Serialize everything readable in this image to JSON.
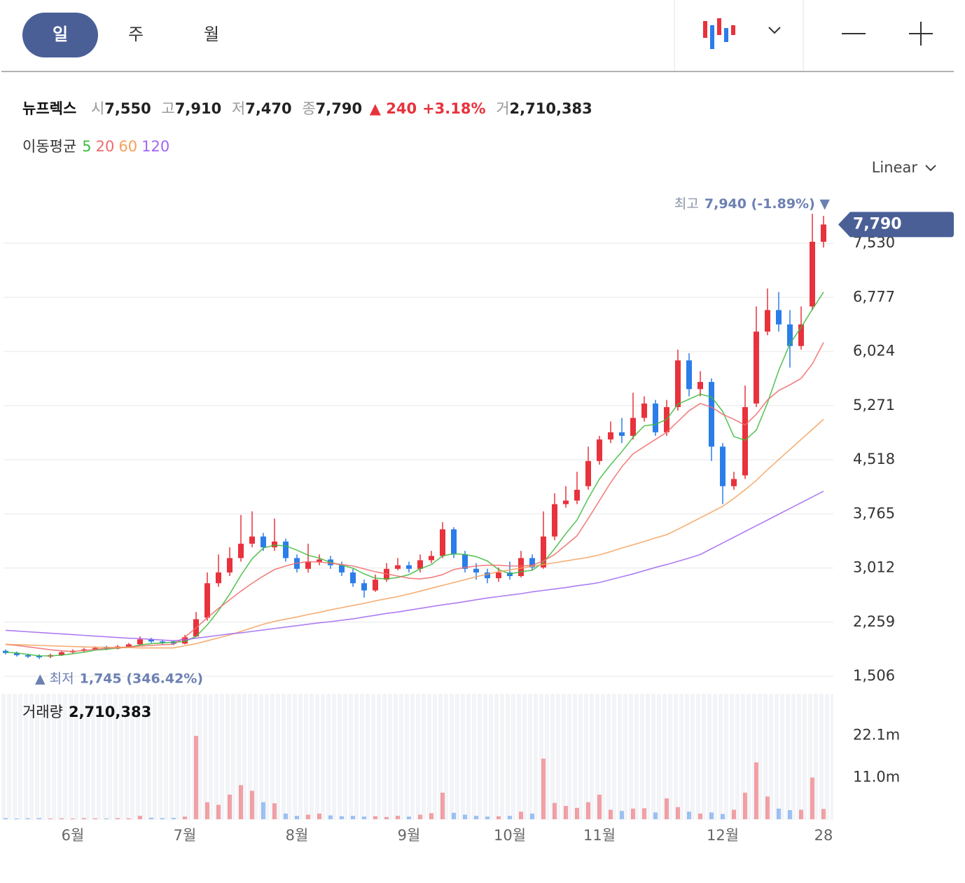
{
  "header": {
    "tabs": [
      "일",
      "주",
      "월"
    ],
    "scale": "Linear"
  },
  "quote": {
    "name": "뉴프렉스",
    "open_label": "시",
    "open": "7,550",
    "high_label": "고",
    "high": "7,910",
    "low_label": "저",
    "low": "7,470",
    "close_label": "종",
    "close": "7,790",
    "change": "▲ 240",
    "change_pct": "+3.18%",
    "volume_label": "거",
    "volume": "2,710,383"
  },
  "chart_data": {
    "type": "candlestick",
    "categories": [
      null,
      null,
      null,
      null,
      null,
      null,
      "6월",
      null,
      null,
      null,
      null,
      null,
      null,
      null,
      null,
      null,
      "7월",
      null,
      null,
      null,
      null,
      null,
      null,
      null,
      null,
      null,
      "8월",
      null,
      null,
      null,
      null,
      null,
      null,
      null,
      null,
      null,
      "9월",
      null,
      null,
      null,
      null,
      null,
      null,
      null,
      null,
      "10월",
      null,
      null,
      null,
      null,
      null,
      null,
      null,
      "11월",
      null,
      null,
      null,
      null,
      null,
      null,
      null,
      null,
      null,
      null,
      "12월",
      null,
      null,
      null,
      null,
      null,
      null,
      null,
      null,
      "28"
    ],
    "open": [
      1860,
      1830,
      1800,
      1790,
      1780,
      1800,
      1840,
      1860,
      1880,
      1910,
      1890,
      1920,
      1950,
      2020,
      1990,
      1990,
      1960,
      2060,
      2320,
      2800,
      2950,
      3150,
      3350,
      3450,
      3300,
      3380,
      3150,
      3000,
      3100,
      3130,
      3050,
      2950,
      2800,
      2700,
      2850,
      3000,
      3050,
      3000,
      3120,
      3180,
      3550,
      3200,
      3000,
      2950,
      2870,
      2950,
      2900,
      3150,
      3020,
      3450,
      3900,
      3950,
      4150,
      4500,
      4800,
      4900,
      4850,
      5100,
      5300,
      4900,
      5250,
      5900,
      5500,
      5600,
      4700,
      4150,
      4300,
      5300,
      6300,
      6600,
      6400,
      6100,
      6650,
      7550
    ],
    "high": [
      1880,
      1850,
      1820,
      1810,
      1820,
      1860,
      1880,
      1900,
      1920,
      1930,
      1940,
      1970,
      2060,
      2040,
      2010,
      2000,
      2080,
      2400,
      2950,
      3200,
      3300,
      3750,
      3800,
      3500,
      3700,
      3420,
      3200,
      3350,
      3200,
      3180,
      3100,
      3000,
      2850,
      2920,
      3080,
      3150,
      3100,
      3200,
      3250,
      3650,
      3580,
      3250,
      3080,
      3000,
      3020,
      3100,
      3250,
      3200,
      3800,
      4050,
      4150,
      4350,
      4700,
      4850,
      5050,
      5100,
      5450,
      5400,
      5350,
      5350,
      6050,
      6000,
      5750,
      5650,
      4750,
      4350,
      5550,
      6650,
      6900,
      6850,
      6600,
      6650,
      7940,
      7910
    ],
    "low": [
      1810,
      1780,
      1760,
      1745,
      1760,
      1790,
      1820,
      1840,
      1870,
      1870,
      1880,
      1900,
      1940,
      1970,
      1950,
      1940,
      1950,
      2050,
      2280,
      2750,
      2900,
      3100,
      3300,
      3250,
      3250,
      3100,
      2950,
      2950,
      3050,
      3000,
      2900,
      2750,
      2600,
      2680,
      2820,
      2980,
      2950,
      2950,
      3080,
      3150,
      3150,
      2950,
      2850,
      2800,
      2820,
      2850,
      2880,
      2980,
      3000,
      3400,
      3850,
      3900,
      4100,
      4450,
      4750,
      4750,
      4800,
      5050,
      4850,
      4850,
      5200,
      5400,
      5400,
      4500,
      3900,
      4100,
      4250,
      5250,
      6250,
      6300,
      5800,
      6050,
      6600,
      7470
    ],
    "close": [
      1830,
      1800,
      1780,
      1770,
      1800,
      1840,
      1860,
      1880,
      1900,
      1890,
      1920,
      1950,
      2020,
      1990,
      1980,
      1960,
      2050,
      2300,
      2800,
      2950,
      3150,
      3350,
      3450,
      3300,
      3380,
      3150,
      3000,
      3100,
      3130,
      3050,
      2950,
      2800,
      2700,
      2850,
      3000,
      3050,
      3000,
      3120,
      3180,
      3550,
      3200,
      3000,
      2950,
      2870,
      2950,
      2900,
      3150,
      3020,
      3450,
      3900,
      3950,
      4100,
      4500,
      4800,
      4900,
      4850,
      5100,
      5300,
      4900,
      5250,
      5900,
      5500,
      5600,
      4700,
      4150,
      4250,
      5250,
      6300,
      6600,
      6400,
      6100,
      6400,
      7550,
      7790
    ],
    "up_color": "#e8323c",
    "down_color": "#2b7de9",
    "ylim": [
      1311,
      8086
    ],
    "yticks": [
      {
        "value": 1506,
        "label": "1,506"
      },
      {
        "value": 2259,
        "label": "2,259"
      },
      {
        "value": 3012,
        "label": "3,012"
      },
      {
        "value": 3765,
        "label": "3,765"
      },
      {
        "value": 4518,
        "label": "4,518"
      },
      {
        "value": 5271,
        "label": "5,271"
      },
      {
        "value": 6024,
        "label": "6,024"
      },
      {
        "value": 6777,
        "label": "6,777"
      },
      {
        "value": 7530,
        "label": "7,530"
      }
    ],
    "grid": true,
    "last_label": "7,790",
    "max_annotation": {
      "label": "최고",
      "value": "7,940 (-1.89%) ▼"
    },
    "min_annotation": {
      "label": "▲ 최저",
      "value": "1,745 (346.42%)"
    },
    "moving_averages": {
      "title": "이동평균",
      "series": [
        {
          "name": "5",
          "color": "#3dbb3d",
          "values": [
            1840,
            1830,
            1810,
            1790,
            1790,
            1800,
            1820,
            1840,
            1870,
            1880,
            1900,
            1910,
            1940,
            1960,
            1970,
            1980,
            1990,
            2060,
            2220,
            2420,
            2650,
            2910,
            3140,
            3290,
            3330,
            3320,
            3260,
            3190,
            3150,
            3090,
            3050,
            3010,
            2930,
            2870,
            2860,
            2880,
            2920,
            3000,
            3060,
            3180,
            3210,
            3200,
            3170,
            3110,
            2990,
            2930,
            2960,
            2980,
            3090,
            3280,
            3490,
            3680,
            3980,
            4250,
            4450,
            4630,
            4830,
            4990,
            5010,
            5080,
            5290,
            5360,
            5430,
            5390,
            5190,
            4840,
            4790,
            4930,
            5310,
            5760,
            6130,
            6360,
            6610,
            6850
          ]
        },
        {
          "name": "20",
          "color": "#f06a6a",
          "values": [
            1950,
            1935,
            1915,
            1895,
            1875,
            1860,
            1850,
            1865,
            1880,
            1895,
            1905,
            1915,
            1925,
            1935,
            1945,
            1950,
            2050,
            2180,
            2320,
            2450,
            2570,
            2690,
            2800,
            2900,
            2990,
            3040,
            3080,
            3100,
            3095,
            3080,
            3060,
            3040,
            3000,
            2960,
            2930,
            2900,
            2870,
            2860,
            2880,
            2920,
            2990,
            3020,
            3040,
            3050,
            3050,
            3040,
            3040,
            3050,
            3110,
            3200,
            3330,
            3460,
            3700,
            3950,
            4200,
            4420,
            4600,
            4700,
            4800,
            4900,
            5050,
            5200,
            5300,
            5250,
            5150,
            5080,
            5000,
            5150,
            5350,
            5480,
            5560,
            5650,
            5850,
            6150
          ]
        },
        {
          "name": "60",
          "color": "#f5a05a",
          "values": [
            1950,
            1945,
            1940,
            1935,
            1930,
            1925,
            1920,
            1915,
            1910,
            1910,
            1905,
            1905,
            1900,
            1900,
            1900,
            1900,
            1930,
            1960,
            2000,
            2040,
            2080,
            2130,
            2180,
            2230,
            2270,
            2300,
            2330,
            2365,
            2395,
            2430,
            2460,
            2490,
            2520,
            2555,
            2585,
            2615,
            2650,
            2690,
            2730,
            2770,
            2810,
            2850,
            2890,
            2925,
            2960,
            2985,
            3010,
            3035,
            3060,
            3085,
            3110,
            3135,
            3160,
            3195,
            3240,
            3290,
            3335,
            3380,
            3430,
            3475,
            3550,
            3630,
            3710,
            3790,
            3870,
            3980,
            4100,
            4230,
            4380,
            4520,
            4660,
            4800,
            4940,
            5080
          ]
        },
        {
          "name": "120",
          "color": "#a066f0",
          "values": [
            2145,
            2135,
            2125,
            2115,
            2105,
            2095,
            2085,
            2075,
            2065,
            2055,
            2045,
            2035,
            2030,
            2020,
            2010,
            2000,
            2015,
            2035,
            2055,
            2075,
            2095,
            2110,
            2130,
            2150,
            2170,
            2190,
            2210,
            2230,
            2250,
            2265,
            2285,
            2305,
            2330,
            2355,
            2380,
            2400,
            2425,
            2450,
            2475,
            2500,
            2520,
            2545,
            2570,
            2595,
            2615,
            2635,
            2655,
            2680,
            2700,
            2720,
            2740,
            2765,
            2785,
            2810,
            2850,
            2890,
            2930,
            2975,
            3020,
            3060,
            3105,
            3150,
            3200,
            3280,
            3360,
            3440,
            3520,
            3600,
            3680,
            3760,
            3840,
            3920,
            4000,
            4080
          ]
        }
      ]
    },
    "volume": {
      "title": "거래량",
      "last": "2,710,383",
      "values": [
        300000,
        200000,
        250000,
        300000,
        200000,
        250000,
        200000,
        300000,
        250000,
        200000,
        300000,
        250000,
        900000,
        400000,
        300000,
        350000,
        700000,
        22000000,
        4500000,
        3800000,
        6500000,
        9000000,
        7500000,
        4500000,
        4200000,
        1500000,
        900000,
        1200000,
        1500000,
        1000000,
        800000,
        900000,
        700000,
        800000,
        600000,
        900000,
        700000,
        1200000,
        1600000,
        7000000,
        1700000,
        1200000,
        900000,
        700000,
        800000,
        900000,
        2000000,
        1500000,
        16000000,
        4300000,
        3500000,
        3000000,
        4500000,
        6500000,
        2500000,
        2200000,
        2800000,
        2900000,
        1800000,
        5500000,
        3200000,
        2000000,
        1500000,
        1800000,
        1400000,
        2500000,
        7000000,
        15000000,
        6000000,
        2800000,
        2400000,
        2500000,
        11000000,
        2710383
      ],
      "ylim": [
        0,
        33100000
      ],
      "yticks": [
        {
          "value": 22100000,
          "label": "22.1m"
        },
        {
          "value": 11000000,
          "label": "11.0m"
        }
      ]
    }
  }
}
